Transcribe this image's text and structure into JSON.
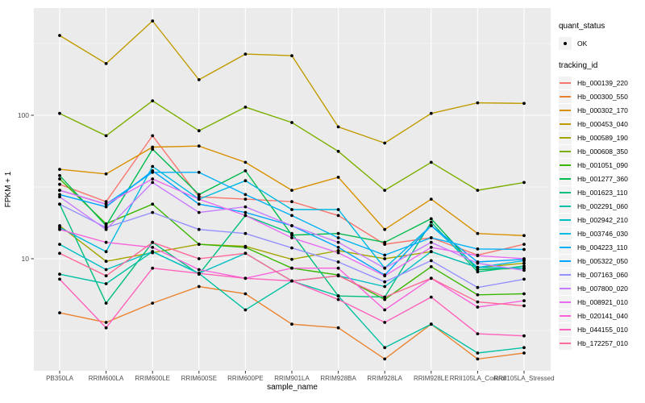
{
  "figure": {
    "background": "#FFFFFF",
    "panel_background": "#EBEBEB",
    "gridline_color": "#FFFFFF",
    "tick_label_color": "#4D4D4D",
    "axis_title_color": "#000000",
    "marker_color": "#000000"
  },
  "legend": {
    "quant_status": {
      "title": "quant_status",
      "items": [
        {
          "label": "OK",
          "marker": "black-point"
        }
      ]
    },
    "tracking_id": {
      "title": "tracking_id"
    }
  },
  "chart_data": {
    "type": "line",
    "title": "",
    "xlabel": "sample_name",
    "ylabel": "FPKM + 1",
    "y_scale": "log10",
    "grid": true,
    "legend_position": "right",
    "y_major_ticks": [
      10,
      100
    ],
    "y_minor_gridlines": [
      3.162,
      31.62,
      316.2
    ],
    "ylim": [
      1.66,
      558
    ],
    "categories": [
      "PB350LA",
      "RRIM600LA",
      "RRIM600LE",
      "RRIM600SE",
      "RRIM600PE",
      "RRIM901LA",
      "RRIM928BA",
      "RRIM928LA",
      "RRIM928LE",
      "RRII105LA_Control",
      "RRII105LA_Stressed"
    ],
    "series": [
      {
        "id": "Hb_000139_220",
        "color": "#F8766D",
        "values": [
          33,
          25,
          72,
          27,
          26,
          25,
          20,
          12.6,
          14,
          10.6,
          12.6
        ]
      },
      {
        "id": "Hb_000300_550",
        "color": "#EA8331",
        "values": [
          4.2,
          3.6,
          4.9,
          6.4,
          5.7,
          3.5,
          3.3,
          2.0,
          3.5,
          2.0,
          2.2
        ]
      },
      {
        "id": "Hb_000302_170",
        "color": "#D89000",
        "values": [
          42,
          39,
          60,
          61,
          47,
          30,
          37,
          16,
          26,
          15,
          14.5
        ]
      },
      {
        "id": "Hb_000453_040",
        "color": "#C09B00",
        "values": [
          360,
          229,
          454,
          177,
          267,
          260,
          83,
          64,
          103,
          122,
          121
        ]
      },
      {
        "id": "Hb_000589_190",
        "color": "#A3A500",
        "values": [
          17,
          9.6,
          11,
          12.6,
          12.2,
          9.9,
          11.4,
          10,
          11.2,
          8.7,
          9.3
        ]
      },
      {
        "id": "Hb_000608_350",
        "color": "#7CAE00",
        "values": [
          103,
          72,
          126,
          78,
          114,
          89,
          56,
          30,
          47,
          30,
          34
        ]
      },
      {
        "id": "Hb_001051_090",
        "color": "#39B600",
        "values": [
          36,
          17.5,
          24,
          12.6,
          12,
          8.6,
          7.7,
          5.2,
          8.8,
          5.6,
          5.7
        ]
      },
      {
        "id": "Hb_001277_360",
        "color": "#00BB4E",
        "values": [
          38,
          17,
          58,
          28,
          41,
          14.6,
          15,
          13,
          19,
          8.4,
          8.6
        ]
      },
      {
        "id": "Hb_001623_110",
        "color": "#00BF7D",
        "values": [
          24,
          4.9,
          13,
          7.8,
          20,
          15,
          5.5,
          5.4,
          18,
          8.1,
          8.9
        ]
      },
      {
        "id": "Hb_002291_060",
        "color": "#00C1A3",
        "values": [
          7.8,
          6.7,
          11.2,
          7.9,
          4.4,
          7.0,
          5.5,
          2.4,
          3.5,
          2.2,
          2.4
        ]
      },
      {
        "id": "Hb_002942_210",
        "color": "#00BFC4",
        "values": [
          12.6,
          8.4,
          11.2,
          7.9,
          10.9,
          7.0,
          7.6,
          6.4,
          11.2,
          8.7,
          8.6
        ]
      },
      {
        "id": "Hb_003746_030",
        "color": "#00BAE0",
        "values": [
          16.5,
          11.2,
          44,
          26,
          35,
          22,
          22,
          8.6,
          17,
          8.7,
          9.7
        ]
      },
      {
        "id": "Hb_004223_110",
        "color": "#00B0F6",
        "values": [
          30,
          24,
          40,
          40,
          28,
          20,
          14,
          10.6,
          14,
          11.7,
          11.6
        ]
      },
      {
        "id": "Hb_005322_050",
        "color": "#00A5FF",
        "values": [
          28,
          23,
          41,
          24,
          21,
          17,
          12,
          7.7,
          17,
          9.5,
          9.9
        ]
      },
      {
        "id": "Hb_007163_060",
        "color": "#9590FF",
        "values": [
          24,
          16.5,
          21,
          16,
          15,
          11.9,
          9.5,
          6.9,
          9.7,
          6.3,
          7.2
        ]
      },
      {
        "id": "Hb_007800_020",
        "color": "#C77CFF",
        "values": [
          27,
          16,
          34,
          21,
          23,
          17,
          13,
          8.6,
          13,
          9.3,
          8.3
        ]
      },
      {
        "id": "Hb_008921_010",
        "color": "#E76BF3",
        "values": [
          30,
          24,
          36,
          26,
          20,
          14,
          11,
          7.6,
          12,
          10.5,
          10
        ]
      },
      {
        "id": "Hb_020141_040",
        "color": "#FA62DB",
        "values": [
          16,
          13,
          12,
          8.4,
          7.3,
          8.6,
          8.6,
          4.4,
          7.3,
          4.6,
          5.1
        ]
      },
      {
        "id": "Hb_044155_010",
        "color": "#FF62BC",
        "values": [
          7.2,
          3.3,
          8.6,
          7.9,
          7.3,
          7.0,
          5.2,
          3.6,
          5.4,
          3.0,
          2.9
        ]
      },
      {
        "id": "Hb_172257_010",
        "color": "#FF6A98",
        "values": [
          10.9,
          7.6,
          13,
          10,
          10.9,
          7.0,
          7.6,
          5.4,
          7.3,
          5.0,
          4.7
        ]
      }
    ]
  }
}
